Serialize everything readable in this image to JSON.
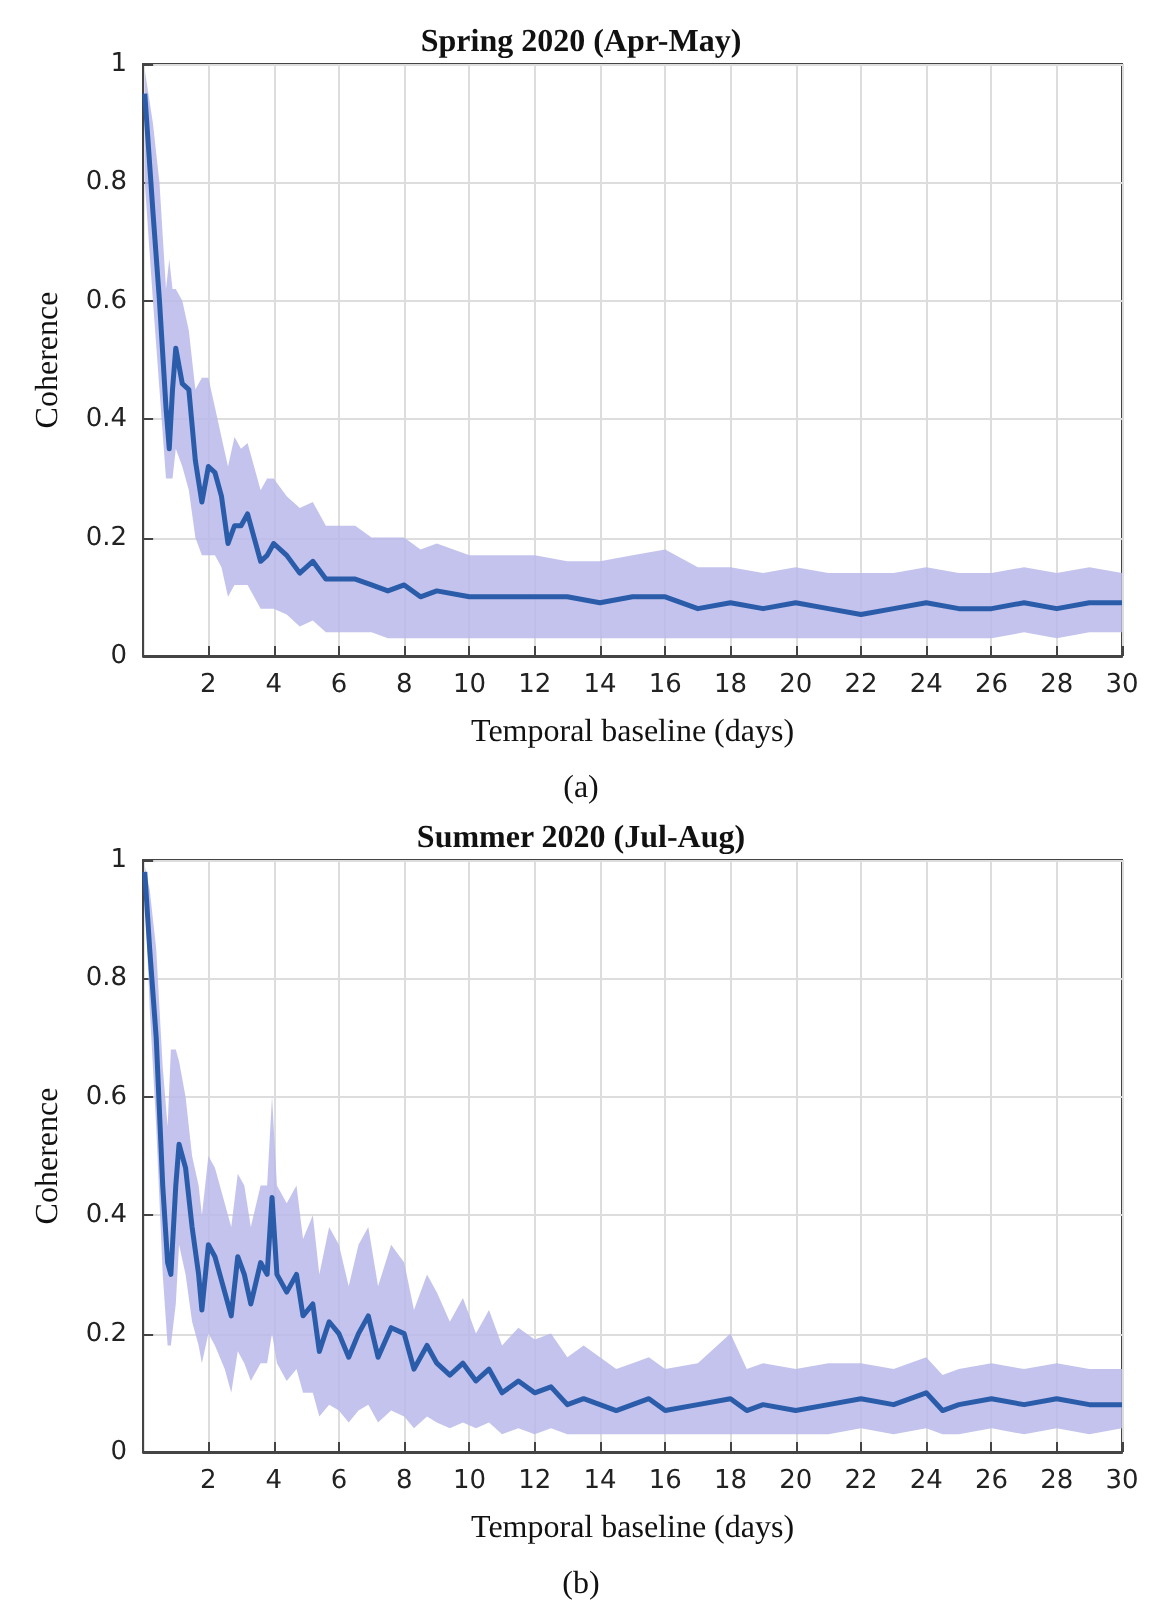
{
  "chart_data": [
    {
      "type": "line",
      "title": "Spring 2020 (Apr-May)",
      "xlabel": "Temporal baseline (days)",
      "ylabel": "Coherence",
      "annotations": [
        "(a)"
      ],
      "grid": true,
      "marker": "none",
      "xlim": [
        0,
        30
      ],
      "ylim": [
        0,
        1
      ],
      "xticks": [
        2,
        4,
        6,
        8,
        10,
        12,
        14,
        16,
        18,
        20,
        22,
        24,
        26,
        28,
        30
      ],
      "yticks": [
        0,
        0.2,
        0.4,
        0.6,
        0.8,
        1
      ],
      "series": [
        {
          "color": "#2a5caa",
          "x": [
            0.05,
            0.3,
            0.5,
            0.7,
            0.8,
            0.9,
            1.0,
            1.2,
            1.4,
            1.6,
            1.8,
            2.0,
            2.2,
            2.4,
            2.6,
            2.8,
            3.0,
            3.2,
            3.4,
            3.6,
            3.8,
            4.0,
            4.4,
            4.8,
            5.2,
            5.6,
            6,
            6.5,
            7,
            7.5,
            8,
            8.5,
            9,
            10,
            11,
            12,
            13,
            14,
            15,
            16,
            17,
            18,
            19,
            20,
            21,
            22,
            23,
            24,
            25,
            26,
            27,
            28,
            29,
            30
          ],
          "values": [
            0.95,
            0.75,
            0.6,
            0.42,
            0.35,
            0.45,
            0.52,
            0.46,
            0.45,
            0.33,
            0.26,
            0.32,
            0.31,
            0.27,
            0.19,
            0.22,
            0.22,
            0.24,
            0.2,
            0.16,
            0.17,
            0.19,
            0.17,
            0.14,
            0.16,
            0.13,
            0.13,
            0.13,
            0.12,
            0.11,
            0.12,
            0.1,
            0.11,
            0.1,
            0.1,
            0.1,
            0.1,
            0.09,
            0.1,
            0.1,
            0.08,
            0.09,
            0.08,
            0.09,
            0.08,
            0.07,
            0.08,
            0.09,
            0.08,
            0.08,
            0.09,
            0.08,
            0.09,
            0.09
          ],
          "upper": [
            0.99,
            0.9,
            0.8,
            0.62,
            0.67,
            0.62,
            0.62,
            0.6,
            0.55,
            0.45,
            0.47,
            0.47,
            0.42,
            0.37,
            0.32,
            0.37,
            0.35,
            0.36,
            0.32,
            0.28,
            0.3,
            0.3,
            0.27,
            0.25,
            0.26,
            0.22,
            0.22,
            0.22,
            0.2,
            0.2,
            0.2,
            0.18,
            0.19,
            0.17,
            0.17,
            0.17,
            0.16,
            0.16,
            0.17,
            0.18,
            0.15,
            0.15,
            0.14,
            0.15,
            0.14,
            0.14,
            0.14,
            0.15,
            0.14,
            0.14,
            0.15,
            0.14,
            0.15,
            0.14
          ],
          "lower": [
            0.8,
            0.6,
            0.45,
            0.3,
            0.3,
            0.3,
            0.35,
            0.32,
            0.28,
            0.2,
            0.17,
            0.17,
            0.17,
            0.15,
            0.1,
            0.12,
            0.12,
            0.12,
            0.1,
            0.08,
            0.08,
            0.08,
            0.07,
            0.05,
            0.06,
            0.04,
            0.04,
            0.04,
            0.04,
            0.03,
            0.03,
            0.03,
            0.03,
            0.03,
            0.03,
            0.03,
            0.03,
            0.03,
            0.03,
            0.03,
            0.03,
            0.03,
            0.03,
            0.03,
            0.03,
            0.03,
            0.03,
            0.03,
            0.03,
            0.03,
            0.04,
            0.03,
            0.04,
            0.04
          ]
        }
      ]
    },
    {
      "type": "line",
      "title": "Summer 2020 (Jul-Aug)",
      "xlabel": "Temporal baseline (days)",
      "ylabel": "Coherence",
      "annotations": [
        "(b)"
      ],
      "grid": true,
      "marker": "none",
      "xlim": [
        0,
        30
      ],
      "ylim": [
        0,
        1
      ],
      "xticks": [
        2,
        4,
        6,
        8,
        10,
        12,
        14,
        16,
        18,
        20,
        22,
        24,
        26,
        28,
        30
      ],
      "yticks": [
        0,
        0.2,
        0.4,
        0.6,
        0.8,
        1
      ],
      "series": [
        {
          "color": "#2a5caa",
          "x": [
            0.05,
            0.2,
            0.4,
            0.6,
            0.75,
            0.85,
            1.0,
            1.1,
            1.3,
            1.5,
            1.7,
            1.8,
            2.0,
            2.2,
            2.5,
            2.7,
            2.9,
            3.1,
            3.3,
            3.6,
            3.8,
            3.95,
            4.1,
            4.4,
            4.7,
            4.9,
            5.2,
            5.4,
            5.7,
            6.0,
            6.3,
            6.6,
            6.9,
            7.2,
            7.6,
            8.0,
            8.3,
            8.7,
            9.0,
            9.4,
            9.8,
            10.2,
            10.6,
            11,
            11.5,
            12,
            12.5,
            13,
            13.5,
            14,
            14.5,
            15,
            15.5,
            16,
            17,
            18,
            18.5,
            19,
            20,
            21,
            22,
            23,
            24,
            24.5,
            25,
            26,
            27,
            28,
            29,
            30
          ],
          "values": [
            0.98,
            0.85,
            0.7,
            0.45,
            0.32,
            0.3,
            0.45,
            0.52,
            0.48,
            0.38,
            0.3,
            0.24,
            0.35,
            0.33,
            0.27,
            0.23,
            0.33,
            0.3,
            0.25,
            0.32,
            0.3,
            0.43,
            0.3,
            0.27,
            0.3,
            0.23,
            0.25,
            0.17,
            0.22,
            0.2,
            0.16,
            0.2,
            0.23,
            0.16,
            0.21,
            0.2,
            0.14,
            0.18,
            0.15,
            0.13,
            0.15,
            0.12,
            0.14,
            0.1,
            0.12,
            0.1,
            0.11,
            0.08,
            0.09,
            0.08,
            0.07,
            0.08,
            0.09,
            0.07,
            0.08,
            0.09,
            0.07,
            0.08,
            0.07,
            0.08,
            0.09,
            0.08,
            0.1,
            0.07,
            0.08,
            0.09,
            0.08,
            0.09,
            0.08,
            0.08
          ],
          "upper": [
            0.99,
            0.95,
            0.85,
            0.65,
            0.55,
            0.68,
            0.68,
            0.66,
            0.6,
            0.5,
            0.45,
            0.4,
            0.5,
            0.48,
            0.42,
            0.38,
            0.47,
            0.45,
            0.38,
            0.45,
            0.45,
            0.6,
            0.45,
            0.42,
            0.45,
            0.36,
            0.4,
            0.3,
            0.38,
            0.35,
            0.28,
            0.35,
            0.38,
            0.28,
            0.35,
            0.32,
            0.24,
            0.3,
            0.27,
            0.22,
            0.26,
            0.2,
            0.24,
            0.18,
            0.21,
            0.19,
            0.2,
            0.16,
            0.18,
            0.16,
            0.14,
            0.15,
            0.16,
            0.14,
            0.15,
            0.2,
            0.14,
            0.15,
            0.14,
            0.15,
            0.15,
            0.14,
            0.16,
            0.13,
            0.14,
            0.15,
            0.14,
            0.15,
            0.14,
            0.14
          ],
          "lower": [
            0.95,
            0.75,
            0.55,
            0.3,
            0.18,
            0.18,
            0.25,
            0.35,
            0.3,
            0.22,
            0.18,
            0.15,
            0.2,
            0.18,
            0.14,
            0.1,
            0.17,
            0.15,
            0.12,
            0.15,
            0.15,
            0.2,
            0.15,
            0.12,
            0.14,
            0.1,
            0.1,
            0.06,
            0.08,
            0.07,
            0.05,
            0.07,
            0.08,
            0.05,
            0.07,
            0.06,
            0.04,
            0.06,
            0.05,
            0.04,
            0.05,
            0.04,
            0.05,
            0.03,
            0.04,
            0.03,
            0.04,
            0.03,
            0.03,
            0.03,
            0.03,
            0.03,
            0.03,
            0.03,
            0.03,
            0.03,
            0.03,
            0.03,
            0.03,
            0.03,
            0.04,
            0.03,
            0.04,
            0.03,
            0.03,
            0.04,
            0.03,
            0.04,
            0.03,
            0.04
          ]
        }
      ]
    }
  ]
}
